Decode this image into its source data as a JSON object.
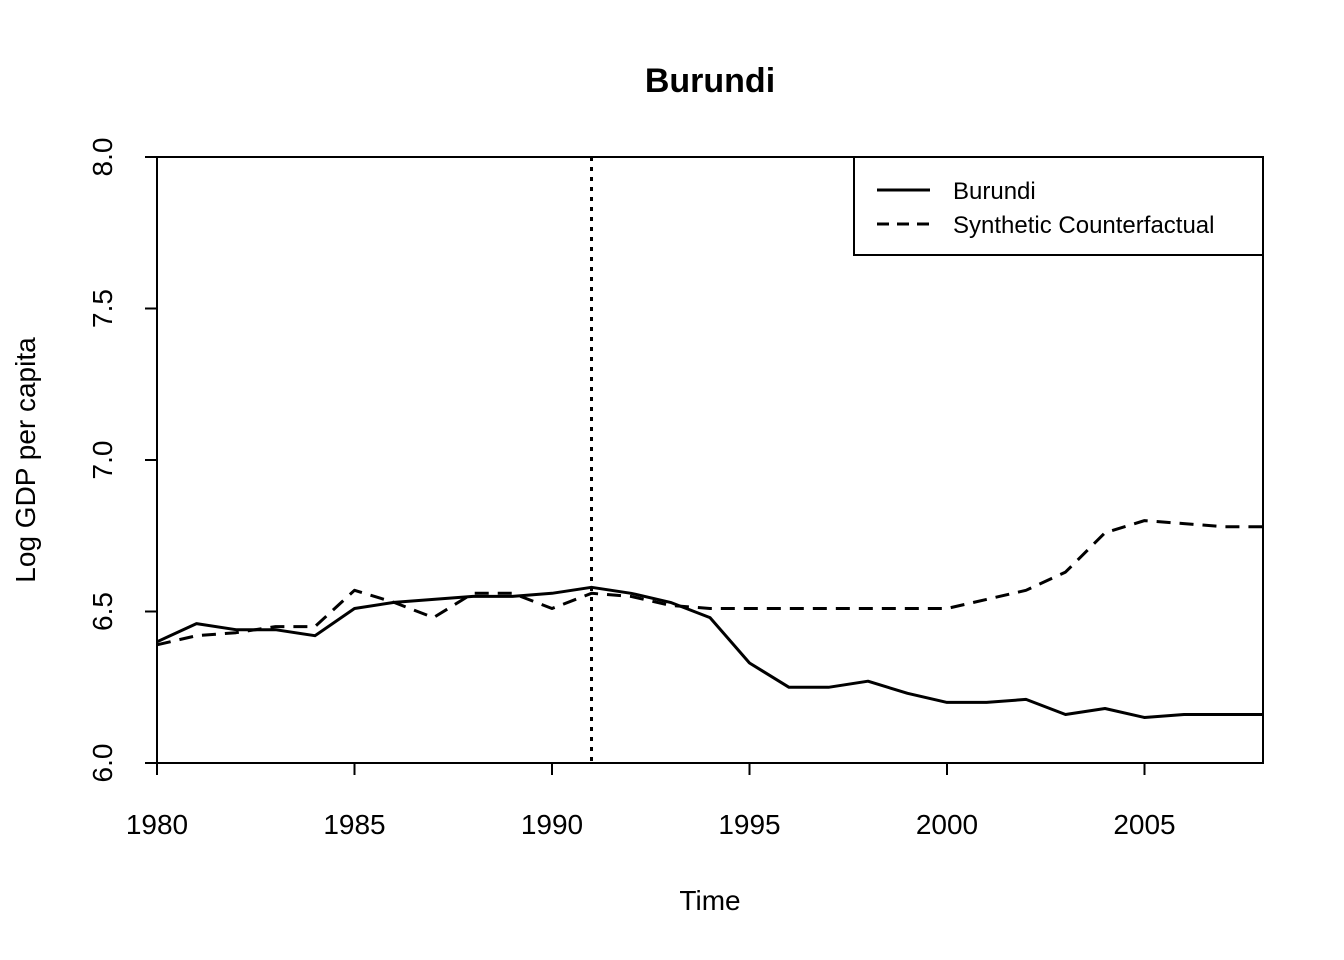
{
  "chart_data": {
    "type": "line",
    "title": "Burundi",
    "xlabel": "Time",
    "ylabel": "Log GDP per capita",
    "xlim": [
      1980,
      2008
    ],
    "ylim": [
      6.0,
      8.0
    ],
    "x_ticks": [
      "1980",
      "1985",
      "1990",
      "1995",
      "2000",
      "2005"
    ],
    "y_ticks": [
      "6.0",
      "6.5",
      "7.0",
      "7.5",
      "8.0"
    ],
    "x": [
      1980,
      1981,
      1982,
      1983,
      1984,
      1985,
      1986,
      1987,
      1988,
      1989,
      1990,
      1991,
      1992,
      1993,
      1994,
      1995,
      1996,
      1997,
      1998,
      1999,
      2000,
      2001,
      2002,
      2003,
      2004,
      2005,
      2006,
      2007,
      2008
    ],
    "series": [
      {
        "name": "Burundi",
        "style": "solid",
        "values": [
          6.4,
          6.46,
          6.44,
          6.44,
          6.42,
          6.51,
          6.53,
          6.54,
          6.55,
          6.55,
          6.56,
          6.58,
          6.56,
          6.53,
          6.48,
          6.33,
          6.25,
          6.25,
          6.27,
          6.23,
          6.2,
          6.2,
          6.21,
          6.16,
          6.18,
          6.15,
          6.16,
          6.16,
          6.16
        ]
      },
      {
        "name": "Synthetic Counterfactual",
        "style": "dashed",
        "values": [
          6.39,
          6.42,
          6.43,
          6.45,
          6.45,
          6.57,
          6.53,
          6.48,
          6.56,
          6.56,
          6.51,
          6.56,
          6.55,
          6.52,
          6.51,
          6.51,
          6.51,
          6.51,
          6.51,
          6.51,
          6.51,
          6.54,
          6.57,
          6.63,
          6.76,
          6.8,
          6.79,
          6.78,
          6.78
        ]
      }
    ],
    "vline_x": 1991,
    "legend_position": "top-right",
    "grid": false
  }
}
